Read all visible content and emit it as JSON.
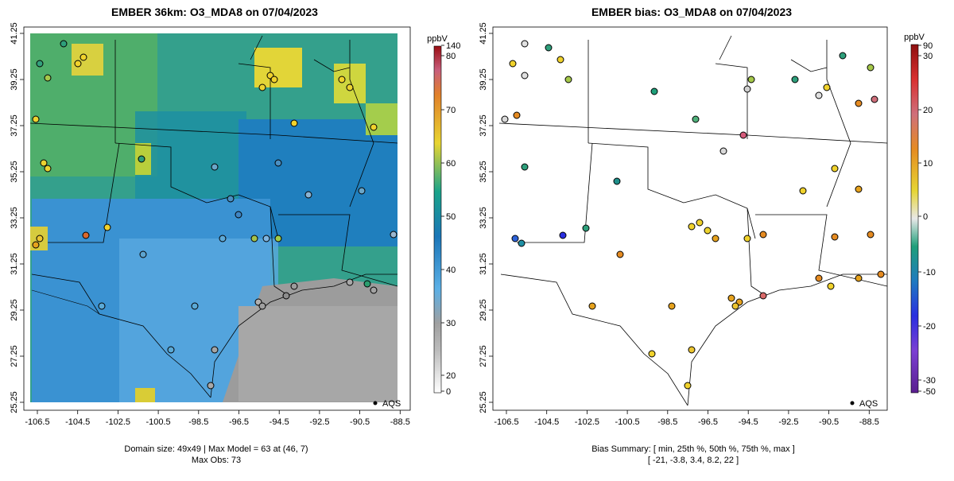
{
  "left_panel": {
    "title": "EMBER 36km: O3_MDA8 on 07/04/2023",
    "x_ticks": [
      "-106.5",
      "-104.5",
      "-102.5",
      "-100.5",
      "-98.5",
      "-96.5",
      "-94.5",
      "-92.5",
      "-90.5",
      "-88.5"
    ],
    "y_ticks": [
      "41.25",
      "39.25",
      "37.25",
      "35.25",
      "33.25",
      "31.25",
      "29.25",
      "27.25",
      "25.25"
    ],
    "legend_marker_label": "AQS",
    "caption_line1": "Domain size: 49x49 | Max Model = 63 at (46, 7)",
    "caption_line2": "Max Obs: 73",
    "colorbar": {
      "unit": "ppbV",
      "tick_labels": [
        "140",
        "80",
        "70",
        "60",
        "50",
        "40",
        "30",
        "20",
        "0"
      ],
      "tick_values": [
        140,
        80,
        70,
        60,
        50,
        40,
        30,
        20,
        0
      ]
    }
  },
  "right_panel": {
    "title": "EMBER bias: O3_MDA8 on 07/04/2023",
    "x_ticks": [
      "-106.5",
      "-104.5",
      "-102.5",
      "-100.5",
      "-98.5",
      "-96.5",
      "-94.5",
      "-92.5",
      "-90.5",
      "-88.5"
    ],
    "y_ticks": [
      "41.25",
      "39.25",
      "37.25",
      "35.25",
      "33.25",
      "31.25",
      "29.25",
      "27.25",
      "25.25"
    ],
    "legend_marker_label": "AQS",
    "caption_line1": "Bias Summary: [ min, 25th %, 50th %, 75th %, max ]",
    "caption_line2": "[ -21,   -3.8,   3.4,   8.2,   22 ]",
    "colorbar": {
      "unit": "ppbV",
      "tick_labels": [
        "90",
        "30",
        "20",
        "10",
        "0",
        "-10",
        "-20",
        "-30",
        "-50"
      ],
      "tick_values": [
        90,
        30,
        20,
        10,
        0,
        -10,
        -20,
        -30,
        -50
      ]
    }
  },
  "colors": {
    "model_low": "#9f9f9f",
    "model_mid": "#3a9ad6",
    "model_midhigh": "#0f8f8a",
    "model_high": "#f2d93a",
    "bias_neg": "#2e9a6e",
    "bias_pos": "#e6a316"
  }
}
